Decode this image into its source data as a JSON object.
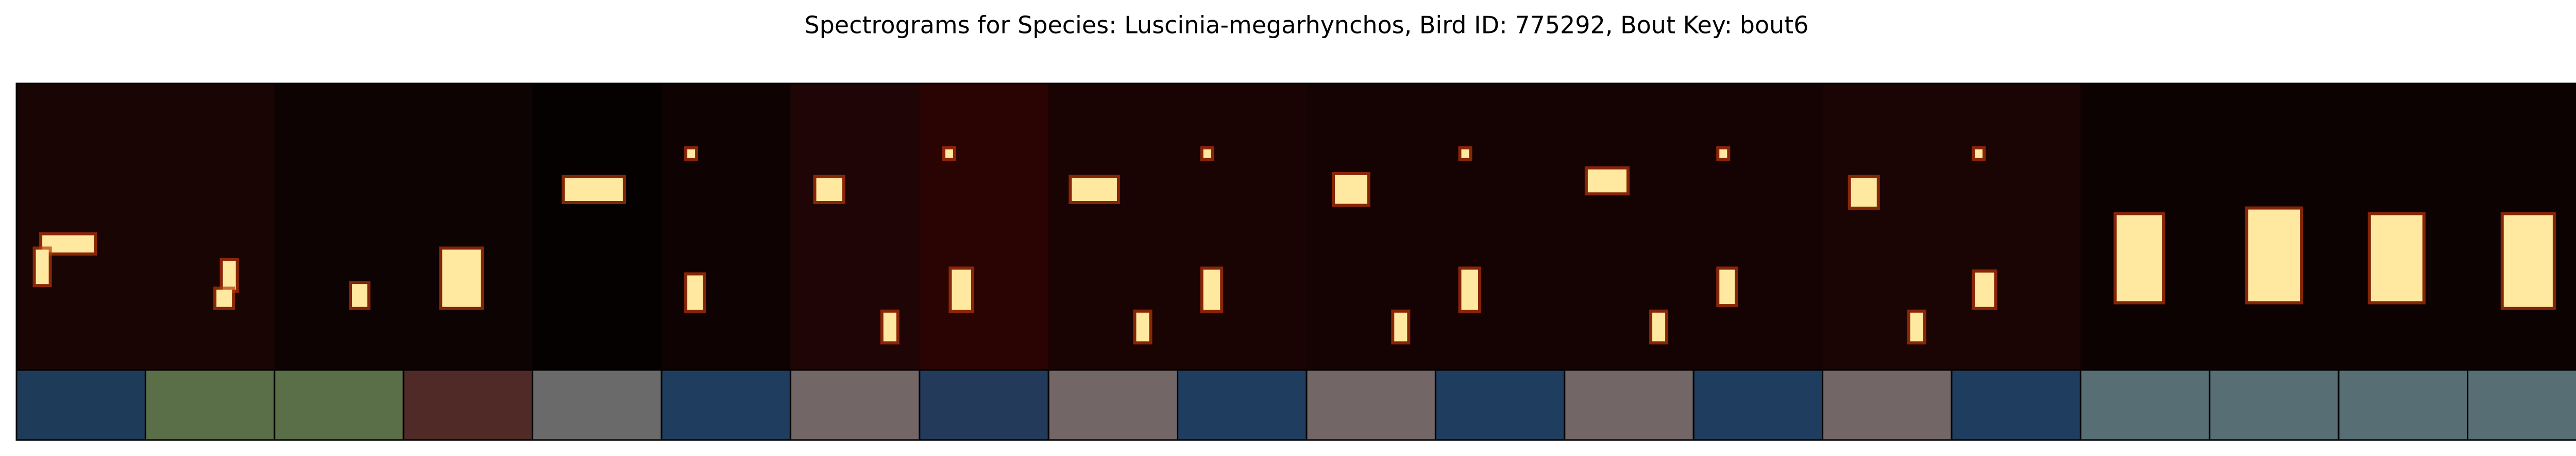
{
  "title": "Spectrograms for Species: Luscinia-megarhynchos, Bird ID: 775292, Bout Key: bout6",
  "label_colors": [
    "#1f3b5a",
    "#5a6e48",
    "#5a6e48",
    "#4f2a26",
    "#6a6a6a",
    "#1f3d5e",
    "#736666",
    "#233a5a",
    "#736666",
    "#1f3d5e",
    "#736666",
    "#1f3d5e",
    "#736666",
    "#1f3d5e",
    "#736666",
    "#1f3d5e",
    "#566e74",
    "#566e74",
    "#566e74",
    "#566e74"
  ]
}
